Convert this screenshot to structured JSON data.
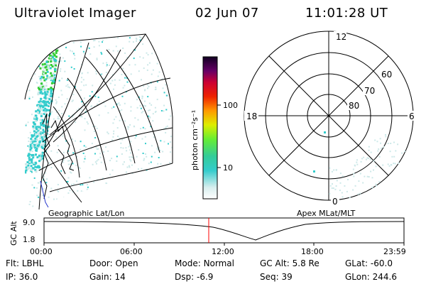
{
  "header": {
    "title": "Ultraviolet Imager",
    "date": "02 Jun 07",
    "time": "11:01:28 UT"
  },
  "colorbar": {
    "unit_label": "photon cm⁻²s⁻¹",
    "tick_labels": [
      "100",
      "10"
    ]
  },
  "polar_plot": {
    "mlt_labels": [
      "12",
      "18",
      "6",
      "0"
    ],
    "lat_labels": [
      "60",
      "70",
      "80"
    ]
  },
  "timeline": {
    "left_title": "Geographic Lat/Lon",
    "right_title": "Apex MLat/MLT",
    "axis_title": "GC Alt",
    "y_ticks": [
      "9.0",
      "1.8"
    ],
    "time_ticks": [
      "00:00",
      "06:00",
      "12:00",
      "18:00",
      "23:59"
    ],
    "marker_time": "11:01:28"
  },
  "info": {
    "row1": [
      {
        "label": "Flt:",
        "value": "LBHL"
      },
      {
        "label": "Door:",
        "value": "Open"
      },
      {
        "label": "Mode:",
        "value": "Normal"
      },
      {
        "label": "GC Alt:",
        "value": "5.8 Re"
      },
      {
        "label": "GLat:",
        "value": "-60.0"
      }
    ],
    "row2": [
      {
        "label": "IP:",
        "value": "36.0"
      },
      {
        "label": "Gain:",
        "value": "14"
      },
      {
        "label": "Dsp:",
        "value": "-6.9"
      },
      {
        "label": "Seq:",
        "value": "39"
      },
      {
        "label": "GLon:",
        "value": "244.6"
      }
    ]
  },
  "colors": {
    "marker": "#ff0000",
    "emission_high": "#33cc33",
    "emission_mid": "#33cccc",
    "emission_low": "#cce8e8"
  }
}
